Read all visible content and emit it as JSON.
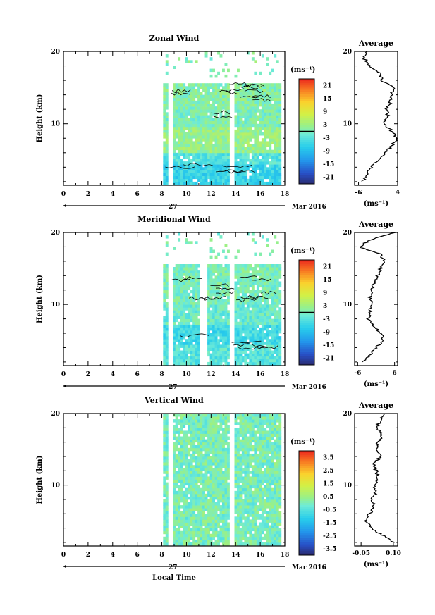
{
  "figure": {
    "month_label": "Mar 2016",
    "day_label": "27",
    "xlabel": "Local Time",
    "ylabel": "Height (km)",
    "x_ticks": [
      "0",
      "2",
      "4",
      "6",
      "8",
      "10",
      "12",
      "14",
      "16",
      "18"
    ],
    "y_ticks": [
      "10",
      "20"
    ],
    "colorbar_unit": "(ms⁻¹)",
    "avg_unit": "(ms⁻¹)",
    "average_title": "Average"
  },
  "chart_data": [
    {
      "type": "heatmap",
      "title": "Zonal Wind",
      "xlabel": "Local Time",
      "ylabel": "Height (km)",
      "xlim": [
        0,
        18
      ],
      "ylim": [
        1.5,
        20
      ],
      "data_start_hour": 8.1,
      "gaps_hour": [
        [
          8.55,
          8.9
        ],
        [
          13.55,
          13.95
        ]
      ],
      "colorbar": {
        "ticks": [
          "21",
          "15",
          "9",
          "3",
          "-3",
          "-9",
          "-15",
          "-21"
        ],
        "range": [
          -24,
          24
        ]
      },
      "profile": {
        "title": "Average",
        "xticks": [
          "-6",
          "4"
        ],
        "xlim": [
          -7,
          4
        ],
        "heights": [
          2,
          3,
          4,
          5,
          6,
          7,
          8,
          9,
          10,
          11,
          12,
          13,
          14,
          15,
          16,
          17,
          18,
          19,
          20
        ],
        "values": [
          -5,
          -3.8,
          -2.8,
          -1.2,
          0.8,
          2.5,
          3.8,
          2.5,
          0.5,
          1.5,
          1.2,
          2.2,
          2.5,
          2.8,
          0.0,
          -0.5,
          -3.2,
          -4.5,
          -3.8
        ]
      }
    },
    {
      "type": "heatmap",
      "title": "Meridional Wind",
      "xlabel": "Local Time",
      "ylabel": "Height (km)",
      "xlim": [
        0,
        18
      ],
      "ylim": [
        1.5,
        20
      ],
      "data_start_hour": 8.1,
      "gaps_hour": [
        [
          8.55,
          8.9
        ],
        [
          11.1,
          11.6
        ],
        [
          13.55,
          13.95
        ]
      ],
      "colorbar": {
        "ticks": [
          "21",
          "15",
          "9",
          "3",
          "-3",
          "-9",
          "-15",
          "-21"
        ],
        "range": [
          -24,
          24
        ]
      },
      "profile": {
        "title": "Average",
        "xticks": [
          "-6",
          "6"
        ],
        "xlim": [
          -7,
          7
        ],
        "heights": [
          2,
          3,
          4,
          5,
          6,
          7,
          8,
          9,
          10,
          11,
          12,
          13,
          14,
          15,
          16,
          17,
          18,
          19,
          20
        ],
        "values": [
          -4.5,
          -2,
          0,
          2.5,
          1.5,
          -1,
          -2.5,
          -2,
          -1.5,
          -2,
          -1.5,
          -0.5,
          0.5,
          1.5,
          2.5,
          1.5,
          -5.5,
          -2,
          6
        ]
      }
    },
    {
      "type": "heatmap",
      "title": "Vertical Wind",
      "xlabel": "Local Time",
      "ylabel": "Height (km)",
      "xlim": [
        0,
        18
      ],
      "ylim": [
        1.5,
        20
      ],
      "data_start_hour": 8.1,
      "gaps_hour": [
        [
          8.55,
          8.9
        ],
        [
          13.55,
          13.95
        ]
      ],
      "colorbar": {
        "ticks": [
          "3.5",
          "2.5",
          "1.5",
          "0.5",
          "-0.5",
          "-1.5",
          "-2.5",
          "-3.5"
        ],
        "range": [
          -4,
          4
        ]
      },
      "profile": {
        "title": "Average",
        "xticks": [
          "-0.05",
          "0.10"
        ],
        "xlim": [
          -0.08,
          0.12
        ],
        "heights": [
          2,
          3,
          4,
          5,
          6,
          7,
          8,
          9,
          10,
          11,
          12,
          13,
          14,
          15,
          16,
          17,
          18,
          19,
          20
        ],
        "values": [
          0.1,
          0.05,
          0.0,
          -0.03,
          -0.01,
          0.01,
          0.0,
          0.02,
          0.01,
          0.03,
          0.02,
          0.01,
          0.04,
          0.02,
          0.03,
          0.05,
          0.02,
          0.04,
          0.06
        ]
      }
    }
  ]
}
